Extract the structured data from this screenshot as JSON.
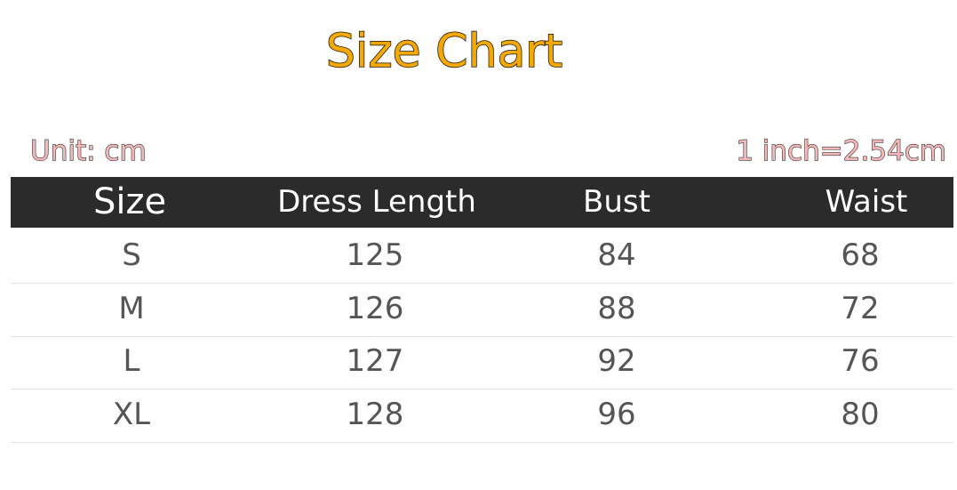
{
  "title": "Size Chart",
  "unit_label": "Unit: cm",
  "conversion_label": "1 inch=2.54cm",
  "colors": {
    "title": "#f5a800",
    "unit_text": "#f4b8b8",
    "header_bg": "#2b2b2b"
  },
  "chart_data": {
    "type": "table",
    "title": "Size Chart",
    "columns": [
      "Size",
      "Dress Length",
      "Bust",
      "Waist"
    ],
    "rows": [
      [
        "S",
        "125",
        "84",
        "68"
      ],
      [
        "M",
        "126",
        "88",
        "72"
      ],
      [
        "L",
        "127",
        "92",
        "76"
      ],
      [
        "XL",
        "128",
        "96",
        "80"
      ]
    ]
  }
}
